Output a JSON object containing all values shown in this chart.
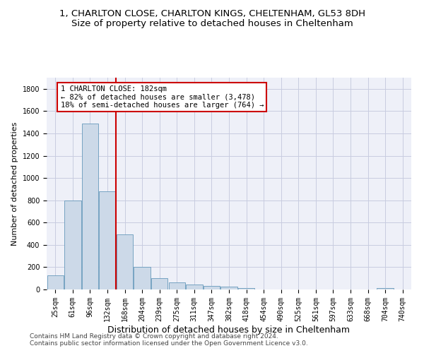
{
  "title1": "1, CHARLTON CLOSE, CHARLTON KINGS, CHELTENHAM, GL53 8DH",
  "title2": "Size of property relative to detached houses in Cheltenham",
  "xlabel": "Distribution of detached houses by size in Cheltenham",
  "ylabel": "Number of detached properties",
  "footer1": "Contains HM Land Registry data © Crown copyright and database right 2024.",
  "footer2": "Contains public sector information licensed under the Open Government Licence v3.0.",
  "bin_labels": [
    "25sqm",
    "61sqm",
    "96sqm",
    "132sqm",
    "168sqm",
    "204sqm",
    "239sqm",
    "275sqm",
    "311sqm",
    "347sqm",
    "382sqm",
    "418sqm",
    "454sqm",
    "490sqm",
    "525sqm",
    "561sqm",
    "597sqm",
    "633sqm",
    "668sqm",
    "704sqm",
    "740sqm"
  ],
  "bar_values": [
    125,
    800,
    1490,
    880,
    495,
    205,
    100,
    65,
    45,
    33,
    28,
    10,
    0,
    0,
    0,
    0,
    0,
    0,
    0,
    15,
    0
  ],
  "bar_color": "#ccd9e8",
  "bar_edgecolor": "#6699bb",
  "vline_x": 3.5,
  "vline_color": "#cc0000",
  "annotation_text": "1 CHARLTON CLOSE: 182sqm\n← 82% of detached houses are smaller (3,478)\n18% of semi-detached houses are larger (764) →",
  "annotation_box_edgecolor": "#cc0000",
  "ylim": [
    0,
    1900
  ],
  "yticks": [
    0,
    200,
    400,
    600,
    800,
    1000,
    1200,
    1400,
    1600,
    1800
  ],
  "grid_color": "#c8cce0",
  "bg_color": "#eef0f8",
  "title1_fontsize": 9.5,
  "title2_fontsize": 9.5,
  "xlabel_fontsize": 9,
  "ylabel_fontsize": 8,
  "tick_fontsize": 7,
  "footer_fontsize": 6.5
}
